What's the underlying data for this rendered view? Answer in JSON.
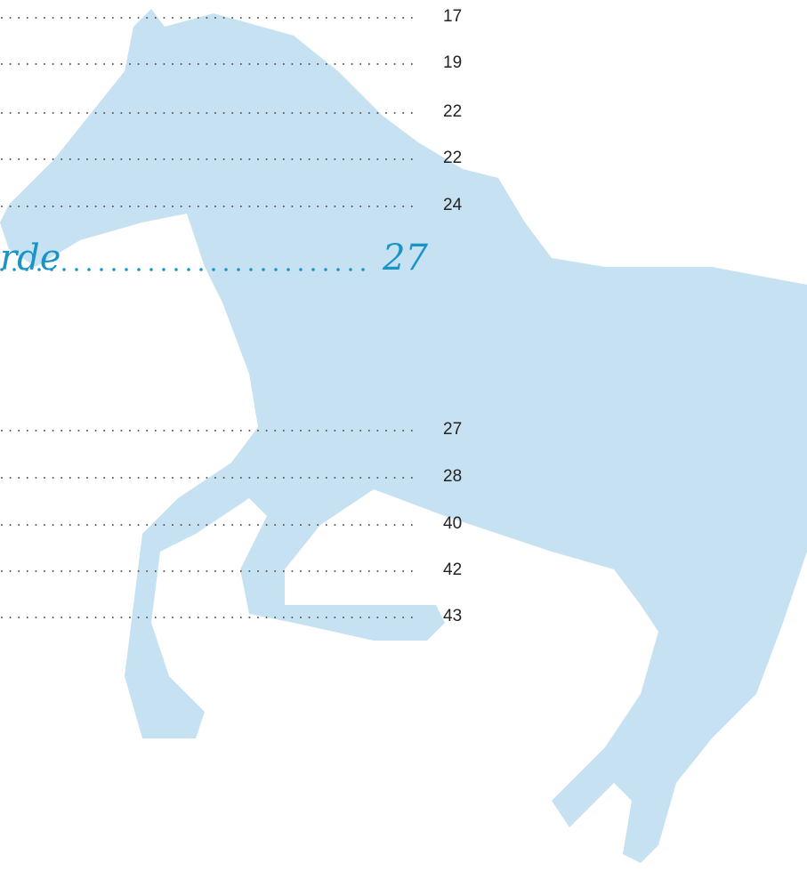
{
  "toc": {
    "entries": [
      {
        "page": "17"
      },
      {
        "page": "19"
      },
      {
        "page": "22"
      },
      {
        "page": "22"
      },
      {
        "page": "24"
      }
    ],
    "section": {
      "title": "rde",
      "page": "27"
    },
    "subentries": [
      {
        "page": "27"
      },
      {
        "page": "28"
      },
      {
        "page": "40"
      },
      {
        "page": "42"
      },
      {
        "page": "43"
      }
    ]
  }
}
